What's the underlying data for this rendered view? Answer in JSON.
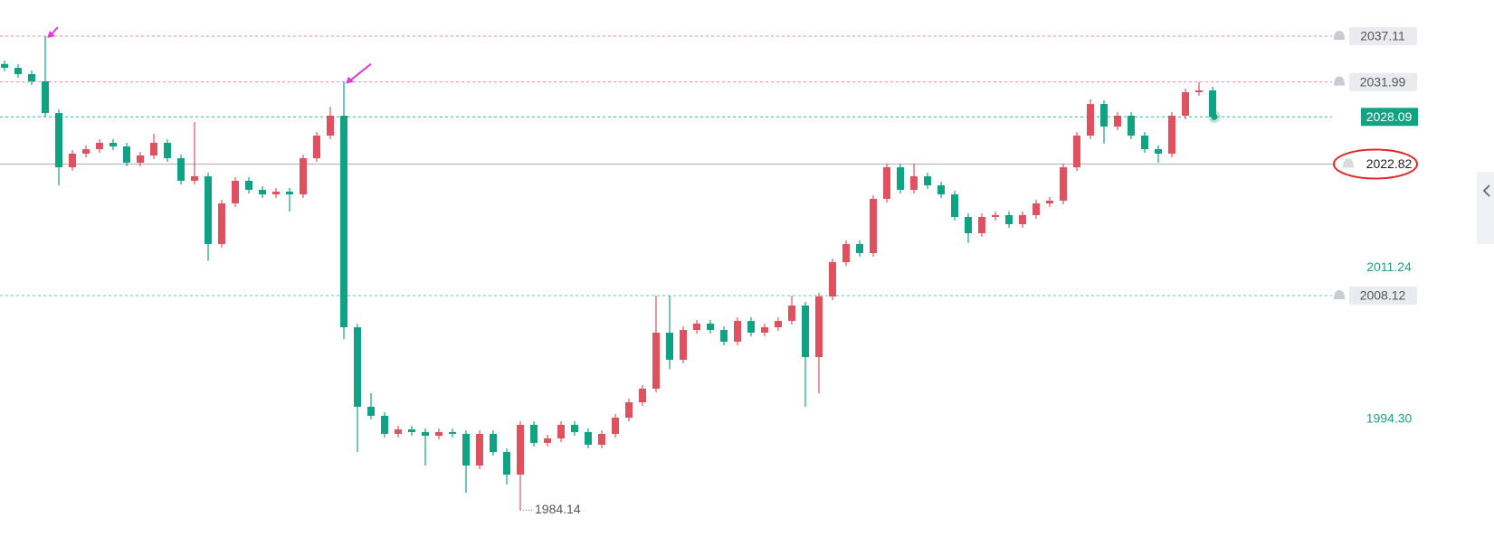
{
  "chart_data": {
    "type": "candlestick",
    "ylim": [
      1980.14,
      2041.15
    ],
    "up_color": "#e0505e",
    "down_color": "#0fa383",
    "series": [
      {
        "open": [
          2034.0,
          2033.57,
          2032.87,
          2032.06,
          2028.52,
          2022.46,
          2023.98,
          2024.48,
          2025.19,
          2024.79,
          2022.97,
          2023.78,
          2025.19,
          2023.47,
          2020.95,
          2021.45,
          2013.88,
          2018.42,
          2020.95,
          2019.94,
          2019.43,
          2019.74,
          2019.43,
          2023.47,
          2026.0,
          2028.22,
          2004.58,
          1995.7,
          1994.69,
          1992.67,
          1993.17,
          1992.87,
          1992.46,
          1992.87,
          1992.67,
          1989.13,
          1992.67,
          1990.64,
          1988.12,
          1993.68,
          1991.66,
          1992.16,
          1993.68,
          1992.87,
          1991.45,
          1992.67,
          1994.48,
          1996.2,
          1997.72,
          2003.98,
          2000.95,
          2004.28,
          2004.99,
          2004.28,
          2002.97,
          2005.29,
          2003.98,
          2004.58,
          2005.29,
          2007.01,
          2001.25,
          2008.02,
          2011.86,
          2013.88,
          2012.87,
          2018.93,
          2022.46,
          2019.94,
          2021.45,
          2020.44,
          2019.43,
          2016.91,
          2015.09,
          2016.91,
          2017.11,
          2016.1,
          2017.11,
          2018.42,
          2018.73,
          2022.46,
          2026.0,
          2029.53,
          2027.01,
          2028.22,
          2026.0,
          2024.48,
          2023.98,
          2028.22,
          2030.85,
          2031.05
        ],
        "high": [
          2034.4,
          2033.97,
          2033.27,
          2037.11,
          2028.92,
          2024.38,
          2024.88,
          2025.59,
          2025.59,
          2025.19,
          2024.18,
          2026.2,
          2025.59,
          2023.87,
          2027.51,
          2021.85,
          2018.82,
          2021.35,
          2021.35,
          2020.34,
          2020.14,
          2020.14,
          2023.87,
          2026.4,
          2029.2,
          2031.99,
          2004.98,
          1997.2,
          1995.09,
          1993.57,
          1993.57,
          1993.27,
          1993.27,
          1993.27,
          1993.07,
          1993.07,
          1993.07,
          1991.04,
          1994.08,
          1994.08,
          1992.56,
          1994.08,
          1994.08,
          1993.27,
          1993.07,
          1994.88,
          1996.6,
          1998.12,
          2008.12,
          2008.12,
          2004.68,
          2005.39,
          2005.39,
          2004.68,
          2005.69,
          2005.69,
          2004.98,
          2005.69,
          2008.12,
          2007.41,
          2008.42,
          2012.26,
          2014.28,
          2014.28,
          2019.33,
          2022.86,
          2022.86,
          2022.86,
          2021.85,
          2020.84,
          2019.83,
          2017.31,
          2017.31,
          2017.51,
          2017.51,
          2017.51,
          2018.82,
          2019.13,
          2022.86,
          2026.4,
          2030.05,
          2029.93,
          2028.62,
          2028.62,
          2026.4,
          2024.88,
          2028.62,
          2031.25,
          2031.99,
          2031.45
        ],
        "low": [
          2033.17,
          2032.47,
          2031.66,
          2028.12,
          2020.44,
          2022.06,
          2023.58,
          2024.08,
          2024.39,
          2022.57,
          2022.57,
          2023.38,
          2023.07,
          2020.55,
          2020.55,
          2012.0,
          2013.48,
          2018.02,
          2019.54,
          2019.03,
          2019.03,
          2017.5,
          2019.03,
          2023.07,
          2025.6,
          2003.27,
          1990.64,
          1994.29,
          1992.27,
          1992.27,
          1992.47,
          1989.13,
          1992.06,
          1992.27,
          1986.1,
          1988.73,
          1990.24,
          1987.0,
          1984.14,
          1991.26,
          1991.26,
          1991.76,
          1992.47,
          1991.05,
          1991.05,
          1992.27,
          1994.08,
          1995.8,
          1997.32,
          1999.9,
          2000.55,
          2003.88,
          2003.88,
          2002.57,
          2002.57,
          2003.58,
          2003.58,
          2004.18,
          2004.89,
          1995.7,
          1997.2,
          2007.62,
          2011.46,
          2012.47,
          2012.47,
          2018.53,
          2019.54,
          2019.54,
          2020.04,
          2019.03,
          2016.51,
          2014.0,
          2014.69,
          2016.51,
          2015.7,
          2015.7,
          2016.71,
          2018.02,
          2018.33,
          2022.06,
          2025.6,
          2025.1,
          2026.61,
          2025.6,
          2024.08,
          2022.97,
          2023.58,
          2027.82,
          2030.45,
          2027.69
        ],
        "close": [
          2033.57,
          2032.87,
          2032.06,
          2028.52,
          2022.46,
          2023.98,
          2024.48,
          2025.19,
          2024.79,
          2022.97,
          2023.78,
          2025.19,
          2023.47,
          2020.95,
          2021.45,
          2013.88,
          2018.42,
          2020.95,
          2019.94,
          2019.43,
          2019.74,
          2019.43,
          2023.47,
          2026.0,
          2028.22,
          2004.58,
          1995.7,
          1994.69,
          1992.67,
          1993.17,
          1992.87,
          1992.46,
          1992.87,
          1992.67,
          1989.13,
          1992.67,
          1990.64,
          1988.12,
          1993.68,
          1991.66,
          1992.16,
          1993.68,
          1992.87,
          1991.45,
          1992.67,
          1994.48,
          1996.2,
          1997.72,
          2003.98,
          2000.95,
          2004.28,
          2004.99,
          2004.28,
          2002.97,
          2005.29,
          2003.98,
          2004.58,
          2005.29,
          2007.01,
          2001.25,
          2008.02,
          2011.86,
          2013.88,
          2012.87,
          2018.93,
          2022.46,
          2019.94,
          2021.45,
          2020.44,
          2019.43,
          2016.91,
          2015.09,
          2016.91,
          2017.11,
          2016.1,
          2017.11,
          2018.42,
          2018.73,
          2022.46,
          2026.0,
          2029.53,
          2027.01,
          2028.22,
          2026.0,
          2024.48,
          2023.98,
          2028.22,
          2030.85,
          2031.05,
          2028.09
        ]
      }
    ],
    "price_labels": [
      {
        "value": 2037.11,
        "kind": "alert",
        "line_color": "#e98ca3"
      },
      {
        "value": 2031.99,
        "kind": "alert",
        "line_color": "#e98ca3"
      },
      {
        "value": 2028.09,
        "kind": "last",
        "line_color": "#3bb497"
      },
      {
        "value": 2022.82,
        "kind": "line",
        "line_color": "#b8b8b8"
      },
      {
        "value": 2011.24,
        "kind": "axis"
      },
      {
        "value": 2008.12,
        "kind": "alert",
        "line_color": "#5cc4ad"
      },
      {
        "value": 1994.3,
        "label": "1994.30",
        "kind": "axis"
      }
    ],
    "low_label": 1984.14
  }
}
